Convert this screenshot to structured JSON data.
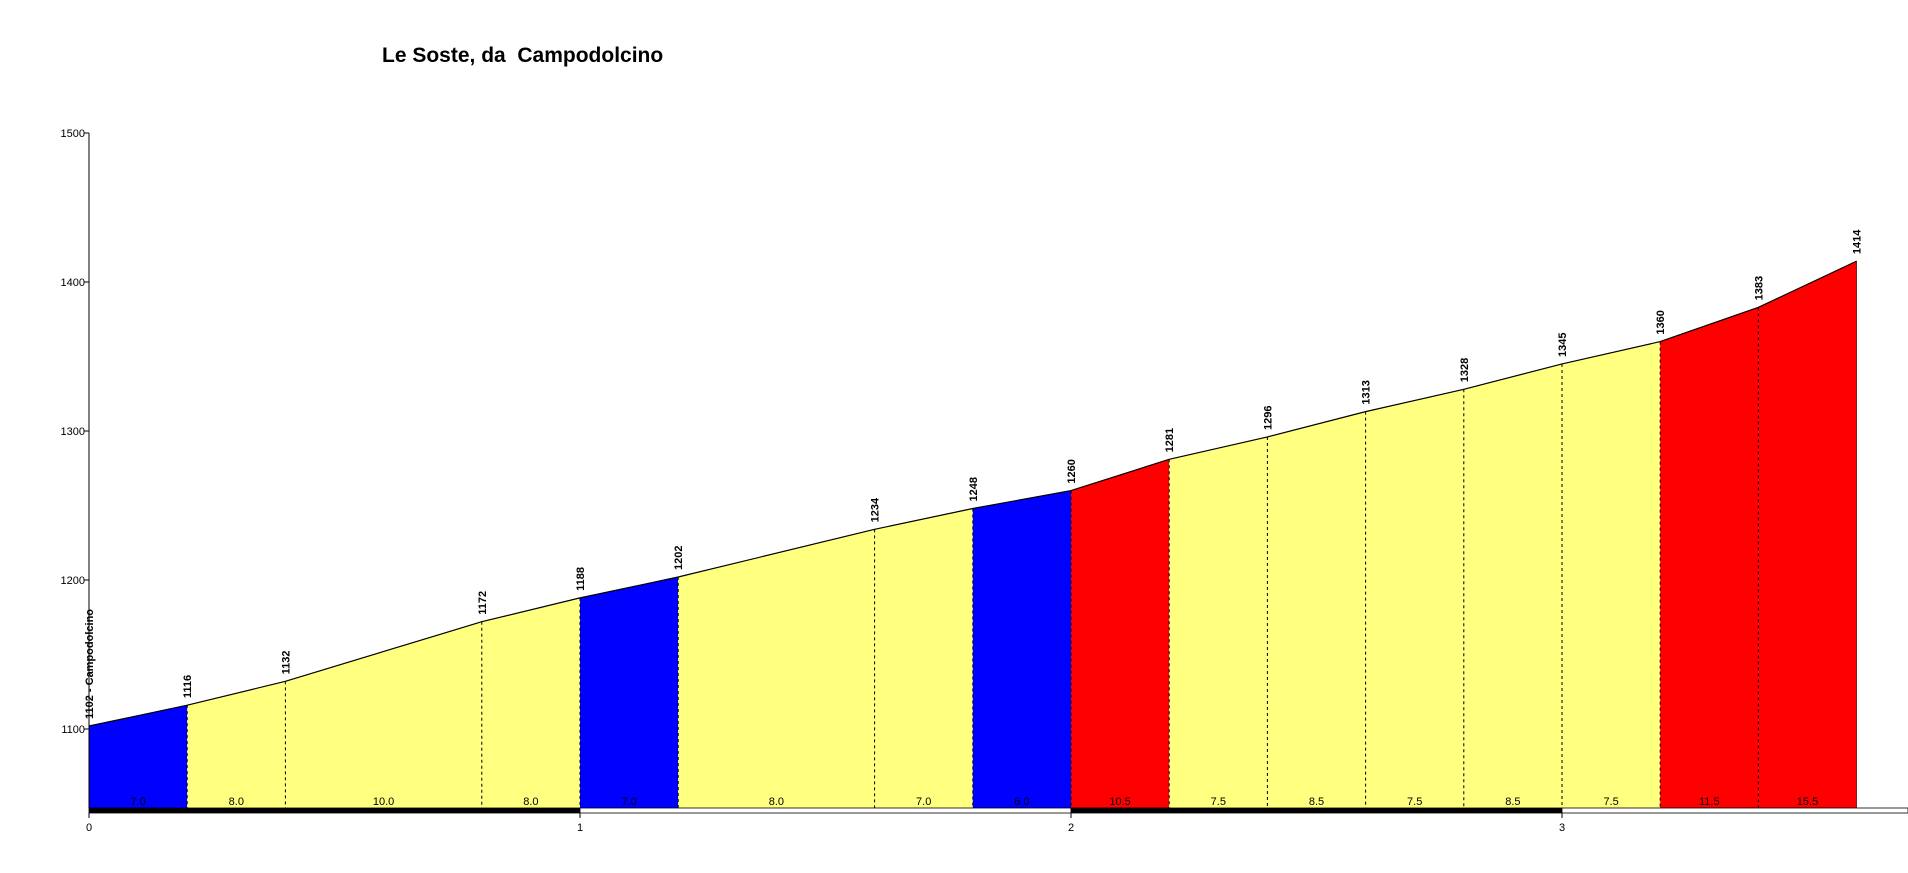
{
  "chart_data": {
    "type": "area",
    "title": "Le Soste, da  Campodolcino",
    "xlabel": "",
    "ylabel": "",
    "xlim": [
      0,
      3.6
    ],
    "ylim": [
      1045,
      1500
    ],
    "x_ticks": [
      0,
      1,
      2,
      3
    ],
    "x_tick_labels": [
      "0",
      "1",
      "2",
      "3"
    ],
    "y_ticks": [
      1100,
      1200,
      1300,
      1400,
      1500
    ],
    "y_tick_labels": [
      "1100",
      "1200",
      "1300",
      "1400",
      "1500"
    ],
    "grid": false,
    "legend": "none",
    "points": [
      {
        "x": 0.0,
        "y": 1102,
        "label": "1102 - Campodolcino"
      },
      {
        "x": 0.2,
        "y": 1116,
        "label": "1116"
      },
      {
        "x": 0.4,
        "y": 1132,
        "label": "1132"
      },
      {
        "x": 0.8,
        "y": 1172,
        "label": "1172"
      },
      {
        "x": 1.0,
        "y": 1188,
        "label": "1188"
      },
      {
        "x": 1.2,
        "y": 1202,
        "label": "1202"
      },
      {
        "x": 1.6,
        "y": 1234,
        "label": "1234"
      },
      {
        "x": 1.8,
        "y": 1248,
        "label": "1248"
      },
      {
        "x": 2.0,
        "y": 1260,
        "label": "1260"
      },
      {
        "x": 2.2,
        "y": 1281,
        "label": "1281"
      },
      {
        "x": 2.4,
        "y": 1296,
        "label": "1296"
      },
      {
        "x": 2.6,
        "y": 1313,
        "label": "1313"
      },
      {
        "x": 2.8,
        "y": 1328,
        "label": "1328"
      },
      {
        "x": 3.0,
        "y": 1345,
        "label": "1345"
      },
      {
        "x": 3.2,
        "y": 1360,
        "label": "1360"
      },
      {
        "x": 3.4,
        "y": 1383,
        "label": "1383"
      },
      {
        "x": 3.6,
        "y": 1414,
        "label": "1414"
      }
    ],
    "segments": [
      {
        "from": 0.0,
        "to": 0.2,
        "gradient": "7.0",
        "color": "#0000ff"
      },
      {
        "from": 0.2,
        "to": 0.4,
        "gradient": "8.0",
        "color": "#ffff80"
      },
      {
        "from": 0.4,
        "to": 0.8,
        "gradient": "10.0",
        "color": "#ffff80"
      },
      {
        "from": 0.8,
        "to": 1.0,
        "gradient": "8.0",
        "color": "#ffff80"
      },
      {
        "from": 1.0,
        "to": 1.2,
        "gradient": "7.0",
        "color": "#0000ff"
      },
      {
        "from": 1.2,
        "to": 1.6,
        "gradient": "8.0",
        "color": "#ffff80"
      },
      {
        "from": 1.6,
        "to": 1.8,
        "gradient": "7.0",
        "color": "#ffff80"
      },
      {
        "from": 1.8,
        "to": 2.0,
        "gradient": "6.0",
        "color": "#0000ff"
      },
      {
        "from": 2.0,
        "to": 2.2,
        "gradient": "10.5",
        "color": "#ff0000"
      },
      {
        "from": 2.2,
        "to": 2.4,
        "gradient": "7.5",
        "color": "#ffff80"
      },
      {
        "from": 2.4,
        "to": 2.6,
        "gradient": "8.5",
        "color": "#ffff80"
      },
      {
        "from": 2.6,
        "to": 2.8,
        "gradient": "7.5",
        "color": "#ffff80"
      },
      {
        "from": 2.8,
        "to": 3.0,
        "gradient": "8.5",
        "color": "#ffff80"
      },
      {
        "from": 3.0,
        "to": 3.2,
        "gradient": "7.5",
        "color": "#ffff80"
      },
      {
        "from": 3.2,
        "to": 3.4,
        "gradient": "11.5",
        "color": "#ff0000"
      },
      {
        "from": 3.4,
        "to": 3.6,
        "gradient": "15.5",
        "color": "#ff0000"
      }
    ],
    "colors": {
      "axis": "#000000",
      "outline": "#000000",
      "km_bar_dark": "#000000",
      "km_bar_light": "#ffffff"
    }
  }
}
